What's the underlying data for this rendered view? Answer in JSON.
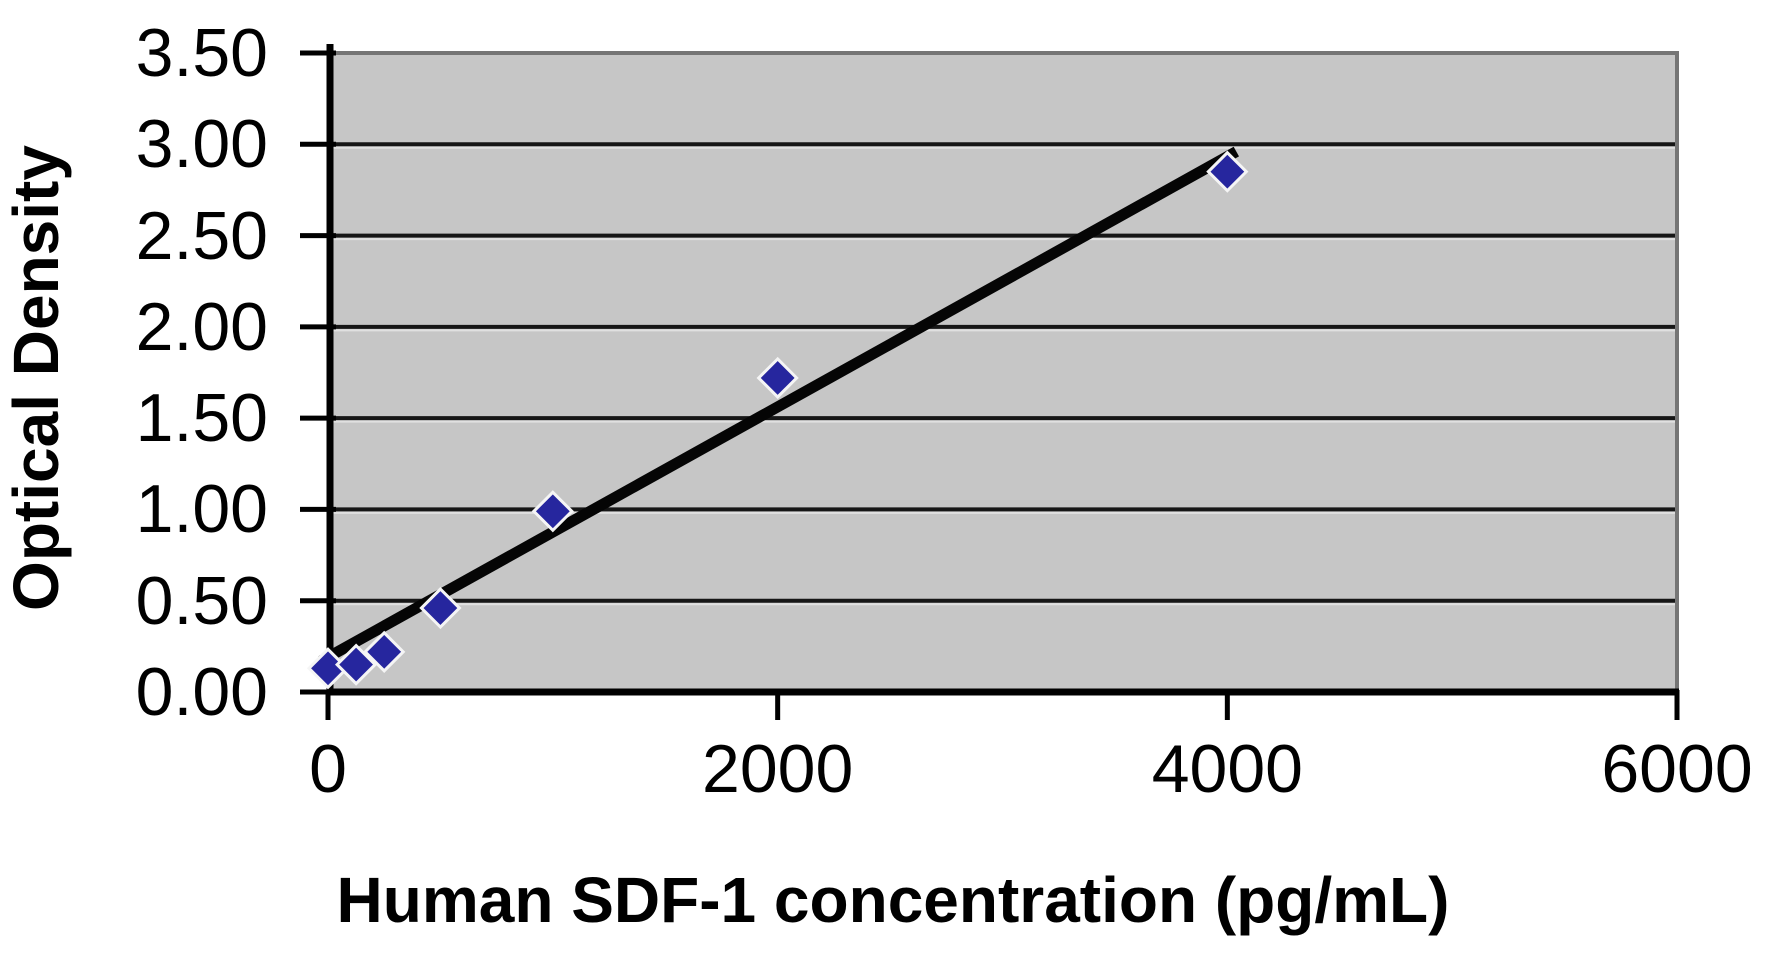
{
  "chart_data": {
    "type": "scatter",
    "title": "",
    "xlabel": "Human SDF-1 concentration (pg/mL)",
    "ylabel": "Optical Density",
    "xlim": [
      0,
      6000
    ],
    "ylim": [
      0,
      3.5
    ],
    "grid": "horizontal-only",
    "legend_position": "none",
    "plot_area_bg": "#c6c6c6",
    "gridline_color": "#161616",
    "plot_border_color": "#757575",
    "axis_color": "#000000",
    "x_ticks": [
      {
        "value": 0,
        "label": "0"
      },
      {
        "value": 2000,
        "label": "2000"
      },
      {
        "value": 4000,
        "label": "4000"
      },
      {
        "value": 6000,
        "label": "6000"
      }
    ],
    "y_ticks": [
      {
        "value": 3.5,
        "label": "3.50"
      },
      {
        "value": 3.0,
        "label": "3.00"
      },
      {
        "value": 2.5,
        "label": "2.50"
      },
      {
        "value": 2.0,
        "label": "2.00"
      },
      {
        "value": 1.5,
        "label": "1.50"
      },
      {
        "value": 1.0,
        "label": "1.00"
      },
      {
        "value": 0.5,
        "label": "0.50"
      },
      {
        "value": 0.0,
        "label": "0.00"
      }
    ],
    "series": [
      {
        "name": "standard-curve-points",
        "marker": "diamond",
        "marker_color": "#26269e",
        "marker_outline": "#f5f5f5",
        "points": [
          {
            "x": 0,
            "y": 0.13
          },
          {
            "x": 125,
            "y": 0.15
          },
          {
            "x": 250,
            "y": 0.22
          },
          {
            "x": 500,
            "y": 0.46
          },
          {
            "x": 1000,
            "y": 0.99
          },
          {
            "x": 2000,
            "y": 1.72
          },
          {
            "x": 4000,
            "y": 2.85
          }
        ]
      }
    ],
    "trendline": {
      "color": "#050505",
      "x_start": -30,
      "y_start": 0.17,
      "x_end": 4040,
      "y_end": 2.96
    }
  }
}
